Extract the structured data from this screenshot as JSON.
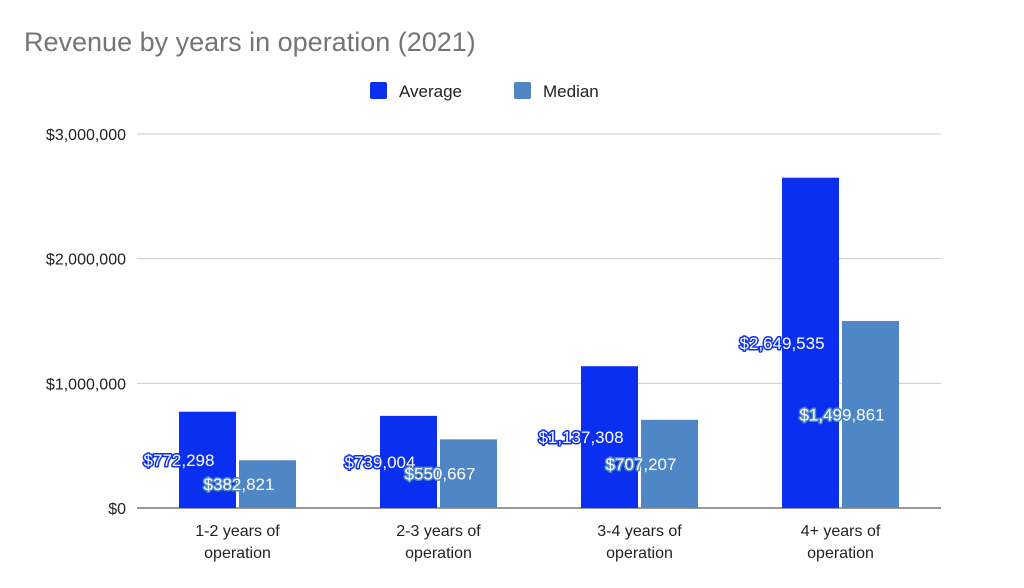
{
  "colors": {
    "average": "#0b2ff0",
    "median": "#4f86c6",
    "title": "#757575"
  },
  "chart_data": {
    "type": "bar",
    "title": "Revenue by years in operation (2021)",
    "xlabel": "",
    "ylabel": "",
    "categories": [
      [
        "1-2 years of",
        "operation"
      ],
      [
        "2-3 years of",
        "operation"
      ],
      [
        "3-4 years of",
        "operation"
      ],
      [
        "4+ years of",
        "operation"
      ]
    ],
    "series": [
      {
        "name": "Average",
        "values": [
          772298,
          739004,
          1137308,
          2649535
        ],
        "labels": [
          "$772,298",
          "$739,004",
          "$1,137,308",
          "$2,649,535"
        ]
      },
      {
        "name": "Median",
        "values": [
          382821,
          550667,
          707207,
          1499861
        ],
        "labels": [
          "$382,821",
          "$550,667",
          "$707,207",
          "$1,499,861"
        ]
      }
    ],
    "ylim": [
      0,
      3000000
    ],
    "yticks": [
      0,
      1000000,
      2000000,
      3000000
    ],
    "ytick_labels": [
      "$0",
      "$1,000,000",
      "$2,000,000",
      "$3,000,000"
    ],
    "grid": true,
    "legend_position": "top-center"
  }
}
